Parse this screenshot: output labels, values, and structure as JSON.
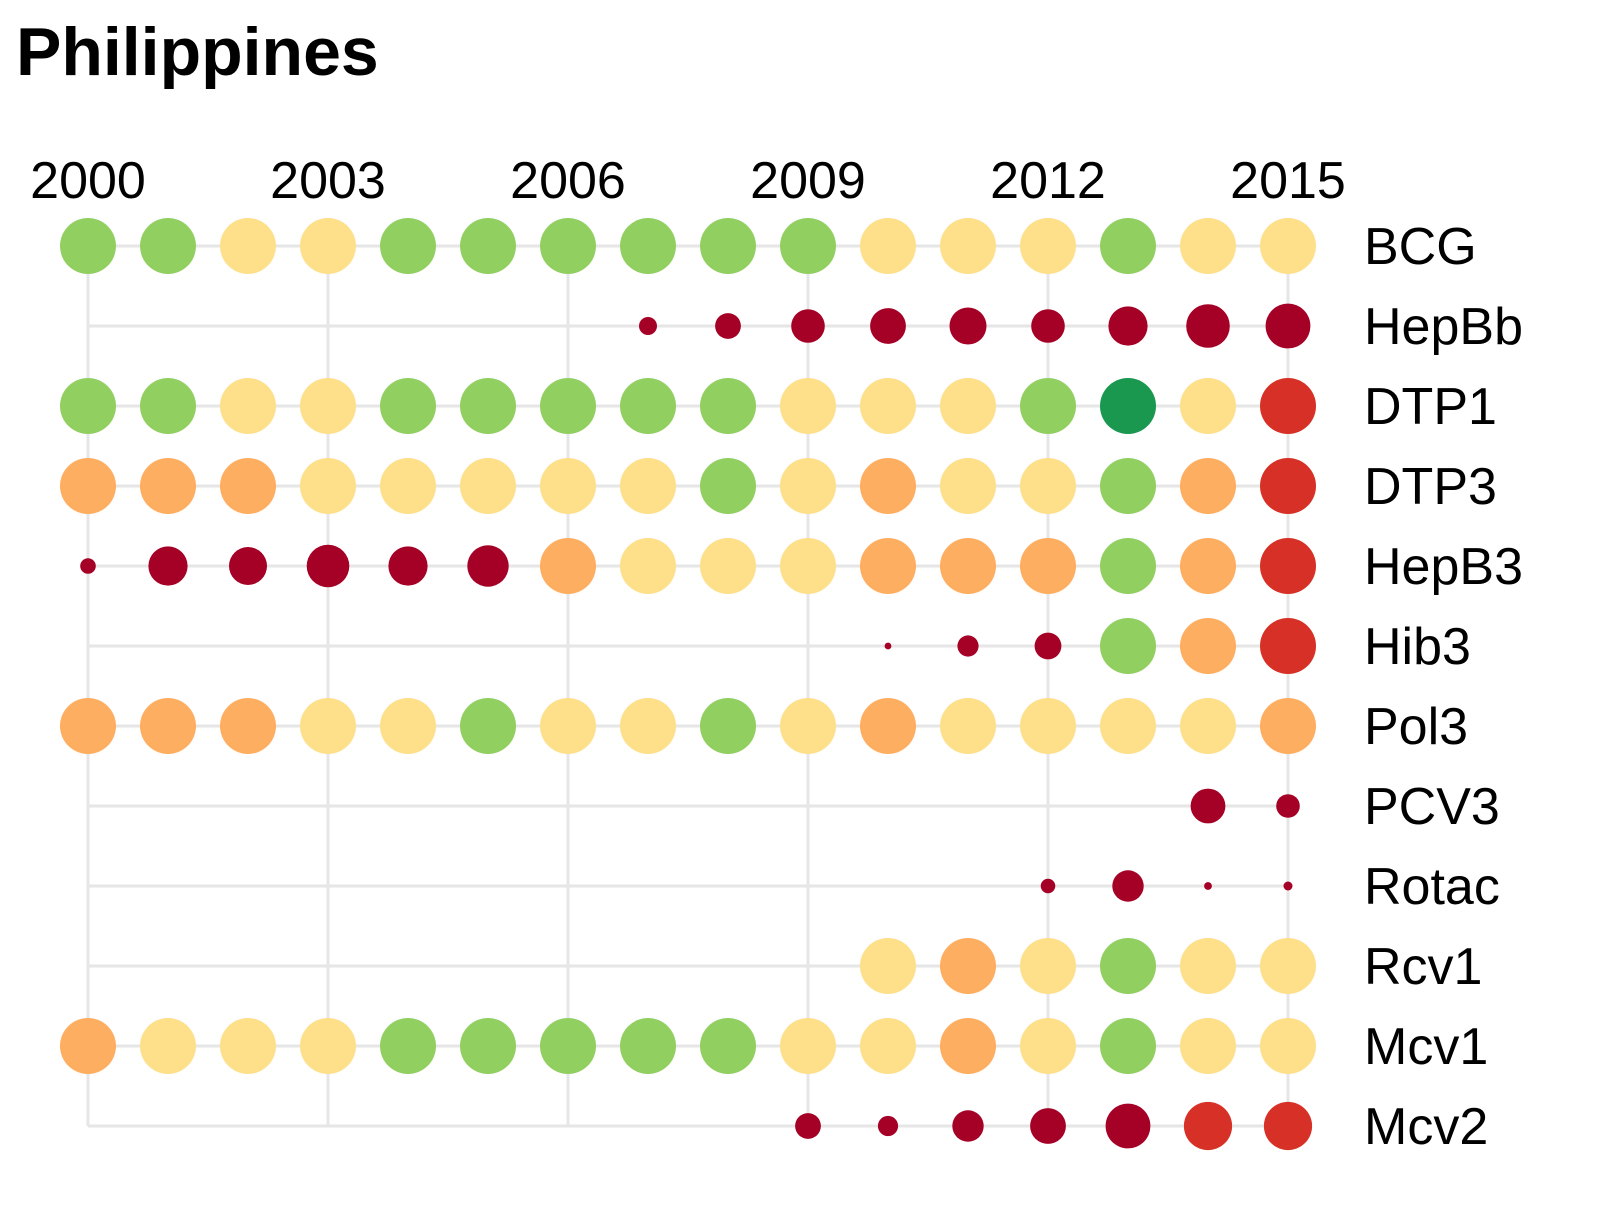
{
  "chart_data": {
    "type": "scatter",
    "title": "Philippines",
    "x": [
      2000,
      2001,
      2002,
      2003,
      2004,
      2005,
      2006,
      2007,
      2008,
      2009,
      2010,
      2011,
      2012,
      2013,
      2014,
      2015
    ],
    "x_ticks": [
      2000,
      2003,
      2006,
      2009,
      2012,
      2015
    ],
    "xlim": [
      2000,
      2015
    ],
    "grid": true,
    "encoding_note_colors": {
      "dark_green": "#1a9850",
      "green": "#91cf60",
      "light_yellow": "#fee08b",
      "orange": "#fdae61",
      "red": "#d73027",
      "dark_red": "#a50026"
    },
    "grid_color": "#e6e6e6",
    "series": [
      {
        "name": "BCG",
        "values": [
          5,
          5,
          3,
          3,
          5,
          5,
          5,
          5,
          5,
          5,
          3,
          3,
          3,
          5,
          3,
          3
        ]
      },
      {
        "name": "HepBb",
        "values": [
          null,
          null,
          null,
          null,
          null,
          null,
          null,
          1,
          1,
          1,
          1,
          1,
          1,
          1,
          1,
          1
        ],
        "size_scale": [
          null,
          null,
          null,
          null,
          null,
          null,
          null,
          0.32,
          0.46,
          0.6,
          0.64,
          0.66,
          0.6,
          0.7,
          0.78,
          0.8
        ]
      },
      {
        "name": "DTP1",
        "values": [
          5,
          5,
          3,
          3,
          5,
          5,
          5,
          5,
          5,
          3,
          3,
          3,
          5,
          6,
          3,
          2
        ]
      },
      {
        "name": "DTP3",
        "values": [
          4,
          4,
          4,
          3,
          3,
          3,
          3,
          3,
          5,
          3,
          4,
          3,
          3,
          5,
          4,
          2
        ]
      },
      {
        "name": "HepB3",
        "values": [
          1,
          1,
          1,
          1,
          1,
          1,
          4,
          3,
          3,
          3,
          4,
          4,
          4,
          5,
          4,
          2
        ],
        "size_scale": [
          0.28,
          0.7,
          0.68,
          0.76,
          0.7,
          0.74,
          1,
          1,
          1,
          1,
          1,
          1,
          1,
          1,
          1,
          1
        ]
      },
      {
        "name": "Hib3",
        "values": [
          null,
          null,
          null,
          null,
          null,
          null,
          null,
          null,
          null,
          null,
          1,
          1,
          1,
          5,
          4,
          2
        ],
        "size_scale": [
          null,
          null,
          null,
          null,
          null,
          null,
          null,
          null,
          null,
          null,
          0.12,
          0.38,
          0.48,
          1,
          1,
          1
        ]
      },
      {
        "name": "Pol3",
        "values": [
          4,
          4,
          4,
          3,
          3,
          5,
          3,
          3,
          5,
          3,
          4,
          3,
          3,
          3,
          3,
          4
        ]
      },
      {
        "name": "PCV3",
        "values": [
          null,
          null,
          null,
          null,
          null,
          null,
          null,
          null,
          null,
          null,
          null,
          null,
          null,
          null,
          1,
          1
        ],
        "size_scale": [
          null,
          null,
          null,
          null,
          null,
          null,
          null,
          null,
          null,
          null,
          null,
          null,
          null,
          null,
          0.62,
          0.42
        ]
      },
      {
        "name": "Rotac",
        "values": [
          null,
          null,
          null,
          null,
          null,
          null,
          null,
          null,
          null,
          null,
          null,
          null,
          1,
          1,
          1,
          1
        ],
        "size_scale": [
          null,
          null,
          null,
          null,
          null,
          null,
          null,
          null,
          null,
          null,
          null,
          null,
          0.26,
          0.56,
          0.14,
          0.16
        ]
      },
      {
        "name": "Rcv1",
        "values": [
          null,
          null,
          null,
          null,
          null,
          null,
          null,
          null,
          null,
          null,
          3,
          4,
          3,
          5,
          3,
          3
        ]
      },
      {
        "name": "Mcv1",
        "values": [
          4,
          3,
          3,
          3,
          5,
          5,
          5,
          5,
          5,
          3,
          3,
          4,
          3,
          5,
          3,
          3
        ]
      },
      {
        "name": "Mcv2",
        "values": [
          null,
          null,
          null,
          null,
          null,
          null,
          null,
          null,
          null,
          1,
          1,
          1,
          1,
          1,
          2,
          2
        ],
        "size_scale": [
          null,
          null,
          null,
          null,
          null,
          null,
          null,
          null,
          null,
          0.46,
          0.36,
          0.56,
          0.64,
          0.8,
          0.86,
          0.86
        ]
      }
    ]
  }
}
